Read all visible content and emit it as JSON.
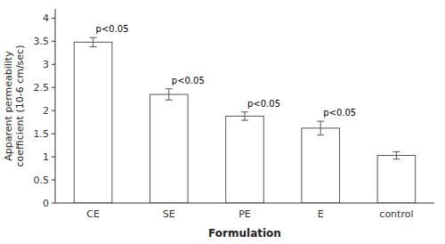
{
  "chart_data": {
    "type": "bar",
    "categories": [
      "CE",
      "SE",
      "PE",
      "E",
      "control"
    ],
    "values": [
      3.48,
      2.35,
      1.88,
      1.62,
      1.03
    ],
    "errors": [
      0.1,
      0.12,
      0.09,
      0.15,
      0.08
    ],
    "annotations": [
      "p<0.05",
      "p<0.05",
      "p<0.05",
      "p<0.05",
      null
    ],
    "color": "#ffffff",
    "xlabel": "Formulation",
    "ylabel": "Apparent permeability\ncoefficient (10-6 cm/sec)",
    "ylim": [
      0,
      4.2
    ],
    "yticks": [
      0,
      0.5,
      1,
      1.5,
      2,
      2.5,
      3,
      3.5,
      4
    ],
    "grid": false
  }
}
